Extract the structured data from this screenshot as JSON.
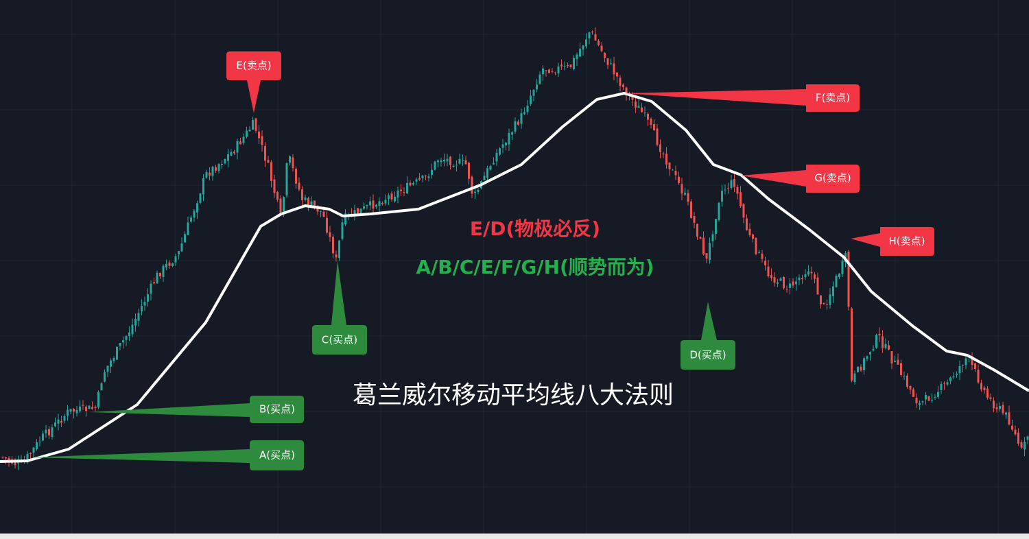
{
  "title": "葛兰威尔移动平均线八大法则",
  "rules": [
    "E/D(物极必反)",
    "A/B/C/E/F/G/H(顺势而为)"
  ],
  "callouts": {
    "A": "A(买点)",
    "B": "B(买点)",
    "C": "C(买点)",
    "D": "D(买点)",
    "E": "E(卖点)",
    "F": "F(卖点)",
    "G": "G(卖点)",
    "H": "H(卖点)"
  }
}
